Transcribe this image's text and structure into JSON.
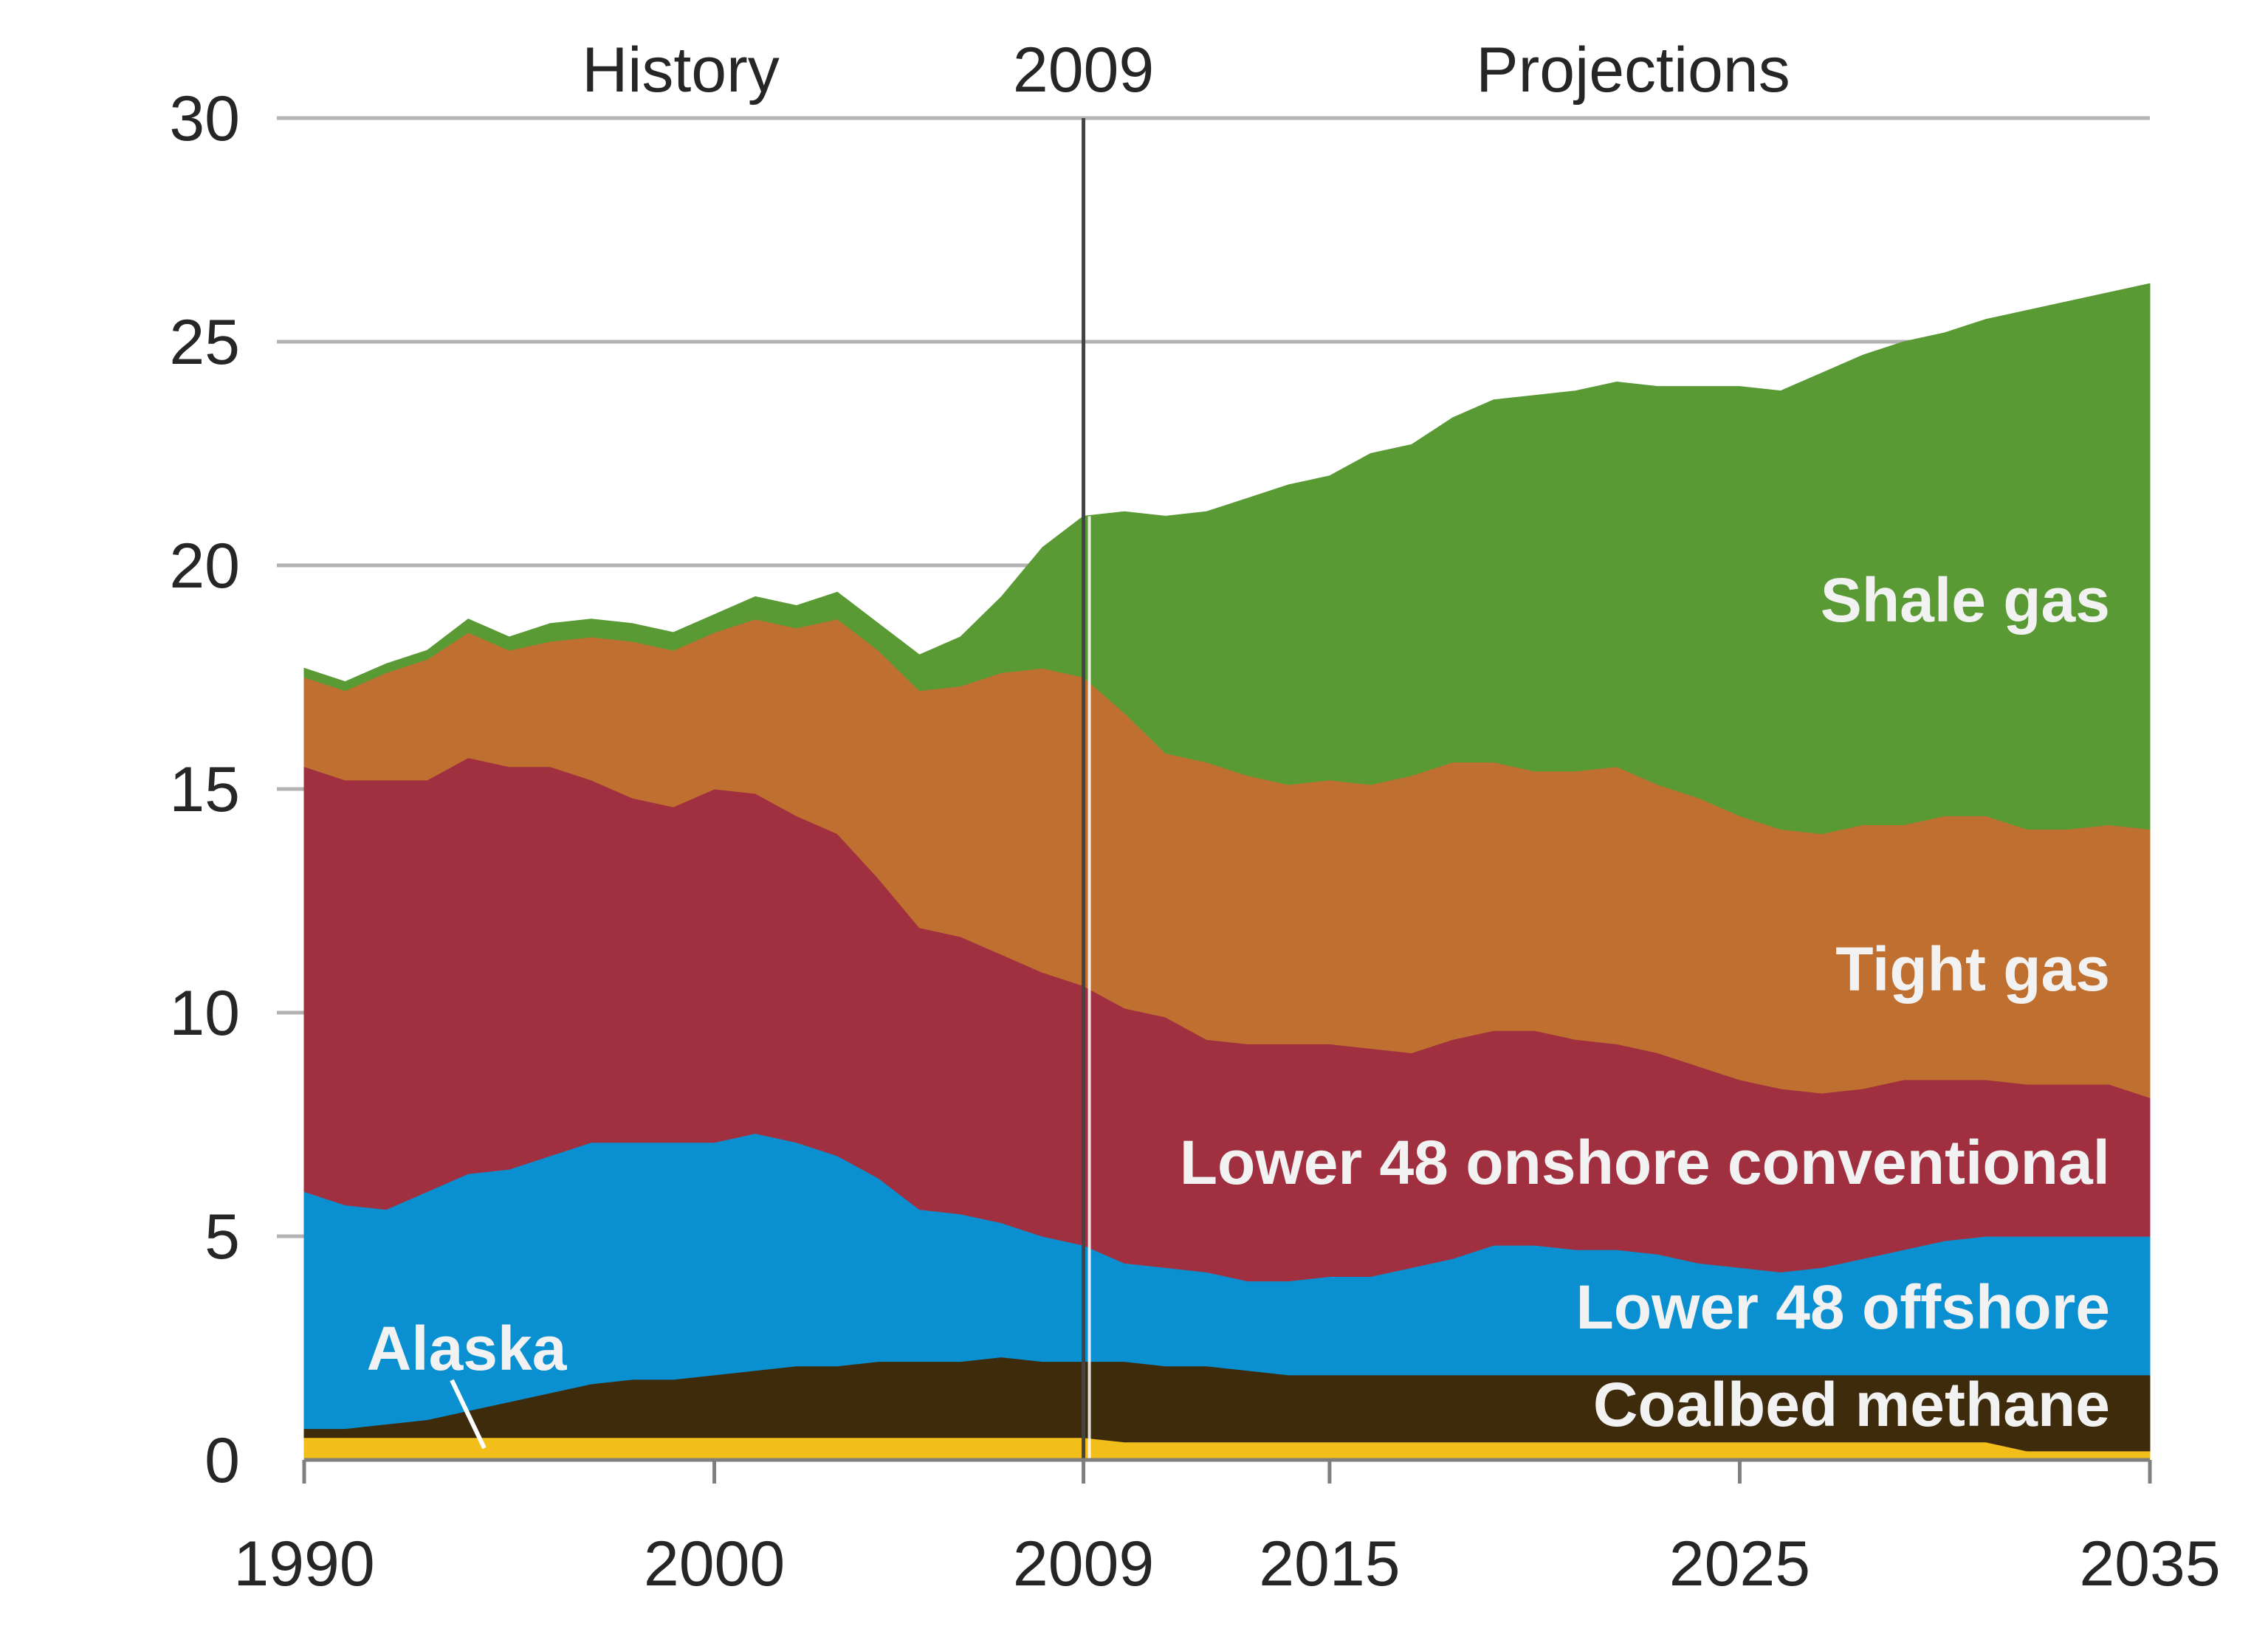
{
  "chart_data": {
    "type": "area",
    "stacked": true,
    "title": "",
    "xlabel": "",
    "ylabel": "",
    "xlim": [
      1990,
      2035
    ],
    "ylim": [
      0,
      30
    ],
    "x_ticks": [
      1990,
      2000,
      2009,
      2015,
      2025,
      2035
    ],
    "y_ticks": [
      0,
      5,
      10,
      15,
      20,
      25,
      30
    ],
    "grid": "horizontal",
    "legend": "none (series labeled directly on chart)",
    "annotations": {
      "history": "History",
      "divider": "2009",
      "projections": "Projections",
      "divider_x": 2009
    },
    "x": [
      1990,
      1991,
      1992,
      1993,
      1994,
      1995,
      1996,
      1997,
      1998,
      1999,
      2000,
      2001,
      2002,
      2003,
      2004,
      2005,
      2006,
      2007,
      2008,
      2009,
      2010,
      2011,
      2012,
      2013,
      2014,
      2015,
      2016,
      2017,
      2018,
      2019,
      2020,
      2021,
      2022,
      2023,
      2024,
      2025,
      2026,
      2027,
      2028,
      2029,
      2030,
      2031,
      2032,
      2033,
      2034,
      2035
    ],
    "series": [
      {
        "name": "Alaska",
        "color": "#f2be1a",
        "values": [
          0.5,
          0.5,
          0.5,
          0.5,
          0.5,
          0.5,
          0.5,
          0.5,
          0.5,
          0.5,
          0.5,
          0.5,
          0.5,
          0.5,
          0.5,
          0.5,
          0.5,
          0.5,
          0.5,
          0.5,
          0.4,
          0.4,
          0.4,
          0.4,
          0.4,
          0.4,
          0.4,
          0.4,
          0.4,
          0.4,
          0.4,
          0.4,
          0.4,
          0.4,
          0.4,
          0.4,
          0.4,
          0.4,
          0.4,
          0.4,
          0.4,
          0.4,
          0.2,
          0.2,
          0.2,
          0.2
        ]
      },
      {
        "name": "Coalbed methane",
        "color": "#3e2b0b",
        "values": [
          0.2,
          0.2,
          0.3,
          0.4,
          0.6,
          0.8,
          1.0,
          1.2,
          1.3,
          1.3,
          1.4,
          1.5,
          1.6,
          1.6,
          1.7,
          1.7,
          1.7,
          1.8,
          1.7,
          1.7,
          1.8,
          1.7,
          1.7,
          1.6,
          1.5,
          1.5,
          1.5,
          1.5,
          1.5,
          1.5,
          1.5,
          1.5,
          1.5,
          1.5,
          1.5,
          1.5,
          1.5,
          1.5,
          1.5,
          1.5,
          1.5,
          1.5,
          1.7,
          1.7,
          1.7,
          1.7
        ]
      },
      {
        "name": "Lower 48 offshore",
        "color": "#0a90d0",
        "values": [
          5.3,
          5.0,
          4.8,
          5.1,
          5.3,
          5.2,
          5.3,
          5.4,
          5.3,
          5.3,
          5.2,
          5.3,
          5.0,
          4.7,
          4.1,
          3.4,
          3.3,
          3.0,
          2.8,
          2.6,
          2.2,
          2.2,
          2.1,
          2.0,
          2.1,
          2.2,
          2.2,
          2.4,
          2.6,
          2.9,
          2.9,
          2.8,
          2.8,
          2.7,
          2.5,
          2.4,
          2.3,
          2.4,
          2.6,
          2.8,
          3.0,
          3.1,
          3.1,
          3.1,
          3.1,
          3.1
        ]
      },
      {
        "name": "Lower 48 onshore conventional",
        "color": "#a03040",
        "values": [
          9.5,
          9.5,
          9.6,
          9.2,
          9.3,
          9.0,
          8.7,
          8.1,
          7.7,
          7.5,
          7.9,
          7.6,
          7.3,
          7.2,
          6.7,
          6.3,
          6.2,
          6.0,
          5.9,
          5.8,
          5.7,
          5.6,
          5.2,
          5.3,
          5.3,
          5.2,
          5.1,
          4.8,
          4.9,
          4.8,
          4.8,
          4.7,
          4.6,
          4.5,
          4.4,
          4.2,
          4.1,
          3.9,
          3.8,
          3.8,
          3.6,
          3.5,
          3.4,
          3.4,
          3.4,
          3.1
        ]
      },
      {
        "name": "Tight gas",
        "color": "#bf7030",
        "values": [
          2.0,
          2.0,
          2.4,
          2.7,
          2.8,
          2.6,
          2.8,
          3.2,
          3.5,
          3.5,
          3.5,
          3.9,
          4.2,
          4.8,
          5.1,
          5.3,
          5.6,
          6.3,
          6.8,
          6.9,
          6.6,
          5.9,
          6.2,
          6.0,
          5.8,
          5.9,
          5.9,
          6.2,
          6.2,
          6.0,
          5.8,
          6.0,
          6.2,
          6.0,
          6.0,
          5.9,
          5.8,
          5.8,
          5.9,
          5.7,
          5.9,
          5.9,
          5.7,
          5.7,
          5.8,
          6.0
        ]
      },
      {
        "name": "Shale gas",
        "color": "#5a9a35",
        "values": [
          0.2,
          0.2,
          0.2,
          0.2,
          0.3,
          0.3,
          0.4,
          0.4,
          0.4,
          0.4,
          0.4,
          0.5,
          0.5,
          0.6,
          0.6,
          0.8,
          1.1,
          1.7,
          2.7,
          3.6,
          4.5,
          5.3,
          5.6,
          6.2,
          6.7,
          6.8,
          7.4,
          7.4,
          7.7,
          8.1,
          8.4,
          8.5,
          8.6,
          8.9,
          9.2,
          9.6,
          9.8,
          10.3,
          10.5,
          10.8,
          10.8,
          11.1,
          11.6,
          11.8,
          11.9,
          12.2
        ]
      }
    ]
  }
}
